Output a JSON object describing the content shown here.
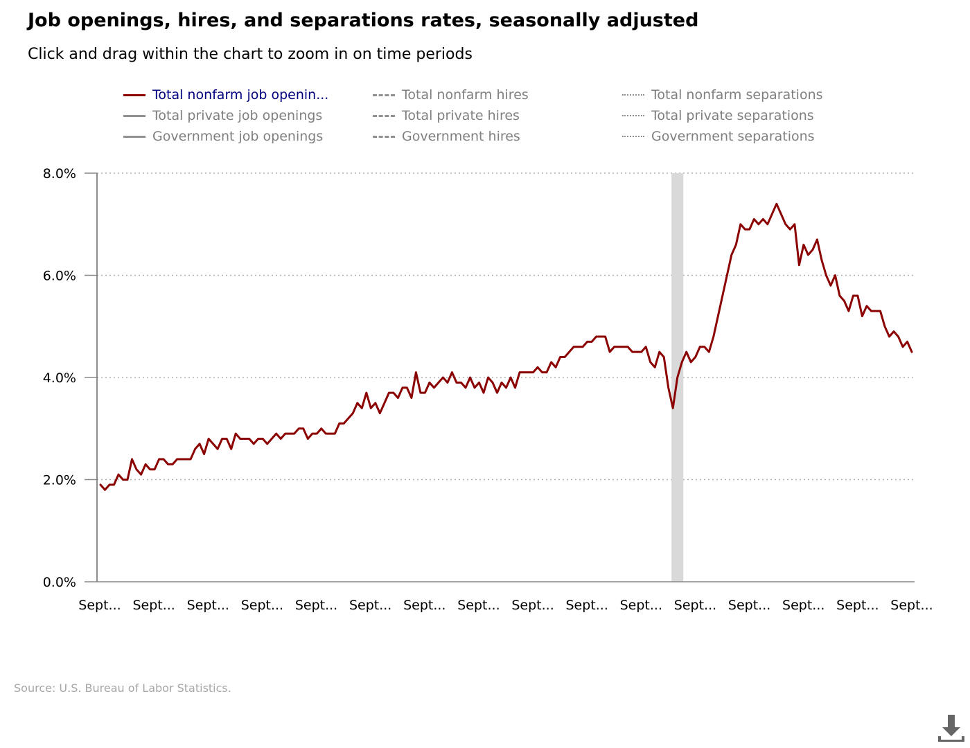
{
  "title": "Job openings, hires, and separations rates, seasonally adjusted",
  "subtitle": "Click and drag within the chart to zoom in on time periods",
  "source": "Source: U.S. Bureau of Labor Statistics.",
  "download_icon": "download-icon",
  "legend": [
    {
      "label": "Total nonfarm job openin...",
      "style": "solid",
      "active": true,
      "color": "#8B0000"
    },
    {
      "label": "Total private job openings",
      "style": "solid",
      "active": false,
      "color": "#909090"
    },
    {
      "label": "Government job openings",
      "style": "solid",
      "active": false,
      "color": "#909090"
    },
    {
      "label": "Total nonfarm hires",
      "style": "dashed",
      "active": false,
      "color": "#909090"
    },
    {
      "label": "Total private hires",
      "style": "dashed",
      "active": false,
      "color": "#909090"
    },
    {
      "label": "Government hires",
      "style": "dashed",
      "active": false,
      "color": "#909090"
    },
    {
      "label": "Total nonfarm separations",
      "style": "dotted",
      "active": false,
      "color": "#909090"
    },
    {
      "label": "Total private separations",
      "style": "dotted",
      "active": false,
      "color": "#909090"
    },
    {
      "label": "Government separations",
      "style": "dotted",
      "active": false,
      "color": "#909090"
    }
  ],
  "chart_data": {
    "type": "line",
    "title": "Job openings, hires, and separations rates, seasonally adjusted",
    "xlabel": "",
    "ylabel": "",
    "ylim": [
      0,
      8
    ],
    "y_ticks": [
      "0.0%",
      "2.0%",
      "4.0%",
      "6.0%",
      "8.0%"
    ],
    "y_tick_values": [
      0,
      2,
      4,
      6,
      8
    ],
    "x_tick_labels": [
      "Sept...",
      "Sept...",
      "Sept...",
      "Sept...",
      "Sept...",
      "Sept...",
      "Sept...",
      "Sept...",
      "Sept...",
      "Sept...",
      "Sept...",
      "Sept...",
      "Sept...",
      "Sept...",
      "Sept...",
      "Sept..."
    ],
    "grid": "horizontal dotted",
    "legend_position": "top",
    "shaded_period": {
      "label": "recession",
      "start_index": 127,
      "end_index": 129,
      "color": "#d9d9d9"
    },
    "series": [
      {
        "name": "Total nonfarm job openings",
        "color": "#8B0000",
        "values": [
          1.9,
          1.8,
          1.9,
          1.9,
          2.1,
          2.0,
          2.0,
          2.4,
          2.2,
          2.1,
          2.3,
          2.2,
          2.2,
          2.4,
          2.4,
          2.3,
          2.3,
          2.4,
          2.4,
          2.4,
          2.4,
          2.6,
          2.7,
          2.5,
          2.8,
          2.7,
          2.6,
          2.8,
          2.8,
          2.6,
          2.9,
          2.8,
          2.8,
          2.8,
          2.7,
          2.8,
          2.8,
          2.7,
          2.8,
          2.9,
          2.8,
          2.9,
          2.9,
          2.9,
          3.0,
          3.0,
          2.8,
          2.9,
          2.9,
          3.0,
          2.9,
          2.9,
          2.9,
          3.1,
          3.1,
          3.2,
          3.3,
          3.5,
          3.4,
          3.7,
          3.4,
          3.5,
          3.3,
          3.5,
          3.7,
          3.7,
          3.6,
          3.8,
          3.8,
          3.6,
          4.1,
          3.7,
          3.7,
          3.9,
          3.8,
          3.9,
          4.0,
          3.9,
          4.1,
          3.9,
          3.9,
          3.8,
          4.0,
          3.8,
          3.9,
          3.7,
          4.0,
          3.9,
          3.7,
          3.9,
          3.8,
          4.0,
          3.8,
          4.1,
          4.1,
          4.1,
          4.1,
          4.2,
          4.1,
          4.1,
          4.3,
          4.2,
          4.4,
          4.4,
          4.5,
          4.6,
          4.6,
          4.6,
          4.7,
          4.7,
          4.8,
          4.8,
          4.8,
          4.5,
          4.6,
          4.6,
          4.6,
          4.6,
          4.5,
          4.5,
          4.5,
          4.6,
          4.3,
          4.2,
          4.5,
          4.4,
          3.8,
          3.4,
          4.0,
          4.3,
          4.5,
          4.3,
          4.4,
          4.6,
          4.6,
          4.5,
          4.8,
          5.2,
          5.6,
          6.0,
          6.4,
          6.6,
          7.0,
          6.9,
          6.9,
          7.1,
          7.0,
          7.1,
          7.0,
          7.2,
          7.4,
          7.2,
          7.0,
          6.9,
          7.0,
          6.2,
          6.6,
          6.4,
          6.5,
          6.7,
          6.3,
          6.0,
          5.8,
          6.0,
          5.6,
          5.5,
          5.3,
          5.6,
          5.6,
          5.2,
          5.4,
          5.3,
          5.3,
          5.3,
          5.0,
          4.8,
          4.9,
          4.8,
          4.6,
          4.7,
          4.5
        ]
      }
    ]
  }
}
